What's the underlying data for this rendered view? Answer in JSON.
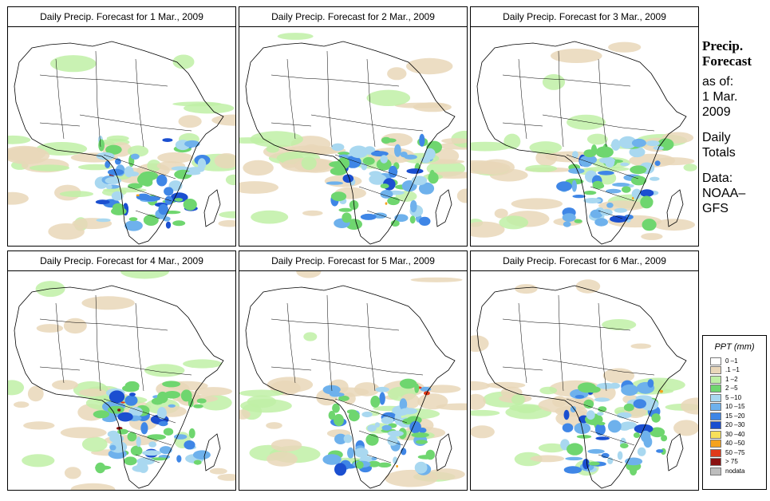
{
  "panels": [
    {
      "title": "Daily Precip. Forecast for  1 Mar., 2009"
    },
    {
      "title": "Daily Precip. Forecast for  2 Mar., 2009"
    },
    {
      "title": "Daily Precip. Forecast for  3 Mar., 2009"
    },
    {
      "title": "Daily Precip. Forecast for  4 Mar., 2009"
    },
    {
      "title": "Daily Precip. Forecast for  5 Mar., 2009"
    },
    {
      "title": "Daily Precip. Forecast for  6 Mar., 2009"
    }
  ],
  "sidebar": {
    "title_line1": "Precip.",
    "title_line2": "Forecast",
    "asof_line1": "as of:",
    "asof_line2": "1 Mar.",
    "asof_line3": "2009",
    "totals_line1": "Daily",
    "totals_line2": "Totals",
    "source_line1": "Data:",
    "source_line2": "NOAA–",
    "source_line3": "GFS"
  },
  "legend": {
    "title": "PPT (mm)",
    "items": [
      {
        "label": "0 –1",
        "color": "#ffffff"
      },
      {
        "label": ".1 –1",
        "color": "#e9d7b9"
      },
      {
        "label": "1 –2",
        "color": "#bff0a6"
      },
      {
        "label": "2 –5",
        "color": "#6fd66f"
      },
      {
        "label": "5 –10",
        "color": "#a9d8f0"
      },
      {
        "label": "10 –15",
        "color": "#6eb1ec"
      },
      {
        "label": "15 –20",
        "color": "#3f86e6"
      },
      {
        "label": "20 –30",
        "color": "#1b4fd0"
      },
      {
        "label": "30 –40",
        "color": "#f7e05a"
      },
      {
        "label": "40 –50",
        "color": "#f4a21d"
      },
      {
        "label": "50 –75",
        "color": "#e03a1a"
      },
      {
        "label": "> 75",
        "color": "#8a1010"
      },
      {
        "label": "nodata",
        "color": "#bdbdbd"
      }
    ]
  }
}
